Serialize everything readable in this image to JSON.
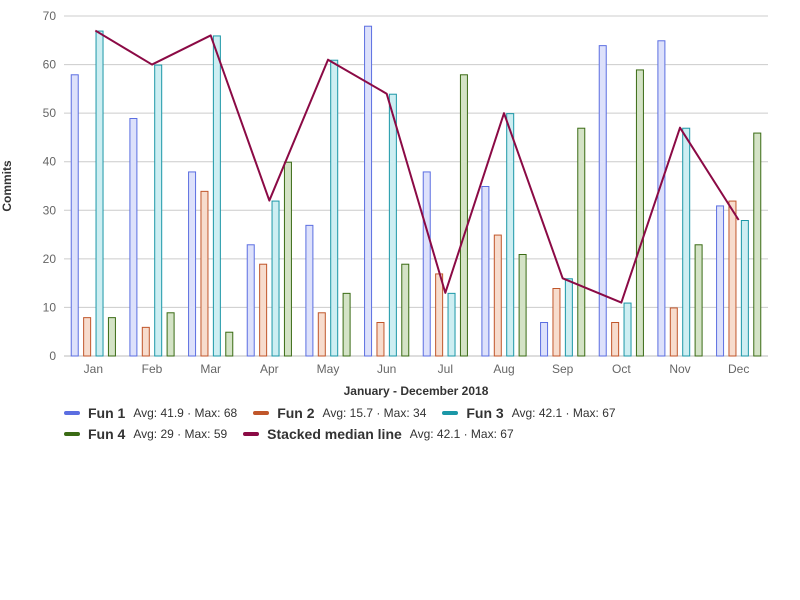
{
  "chart_data": {
    "type": "bar",
    "categories": [
      "Jan",
      "Feb",
      "Mar",
      "Apr",
      "May",
      "Jun",
      "Jul",
      "Aug",
      "Sep",
      "Oct",
      "Nov",
      "Dec"
    ],
    "series": [
      {
        "name": "Fun 1",
        "type": "bar",
        "values": [
          58,
          49,
          38,
          23,
          27,
          68,
          38,
          35,
          7,
          64,
          65,
          31
        ],
        "color": "#5b6ee1",
        "fill": "#dde1fb",
        "stats": "Avg: 41.9 · Max: 68"
      },
      {
        "name": "Fun 2",
        "type": "bar",
        "values": [
          8,
          6,
          34,
          19,
          9,
          7,
          17,
          25,
          14,
          7,
          10,
          32
        ],
        "color": "#c0562a",
        "fill": "#f7dccd",
        "stats": "Avg: 15.7 · Max: 34"
      },
      {
        "name": "Fun 3",
        "type": "bar",
        "values": [
          67,
          60,
          66,
          32,
          61,
          54,
          13,
          50,
          16,
          11,
          47,
          28
        ],
        "color": "#1b97a7",
        "fill": "#cdeef2",
        "stats": "Avg: 42.1 · Max: 67"
      },
      {
        "name": "Fun 4",
        "type": "bar",
        "values": [
          8,
          9,
          5,
          40,
          13,
          19,
          58,
          21,
          47,
          59,
          23,
          46
        ],
        "color": "#3a6b14",
        "fill": "#d4e3c6",
        "stats": "Avg: 29 · Max: 59"
      },
      {
        "name": "Stacked median line",
        "type": "line",
        "values": [
          67,
          60,
          66,
          32,
          61,
          54,
          13,
          50,
          16,
          11,
          47,
          28
        ],
        "color": "#8b0a45",
        "stats": "Avg: 42.1 · Max: 67"
      }
    ],
    "xlabel": "January - December 2018",
    "ylabel": "Commits",
    "ylim": [
      0,
      70
    ],
    "yticks": [
      0,
      10,
      20,
      30,
      40,
      50,
      60,
      70
    ],
    "grid": true,
    "legend_position": "bottom-left"
  }
}
